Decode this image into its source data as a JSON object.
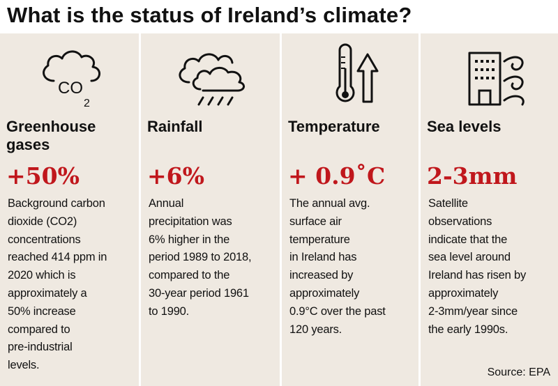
{
  "title": "What is the status of Ireland’s climate?",
  "source": "Source: EPA",
  "panels": [
    {
      "icon": "co2-cloud-icon",
      "heading": "Greenhouse gases",
      "stat": "+50%",
      "lines": [
        "Background carbon",
        "dioxide (CO2)",
        "concentrations",
        "reached 414 ppm in",
        "2020 which is",
        "approximately a",
        "50% increase",
        "compared to",
        "pre-industrial",
        "levels."
      ]
    },
    {
      "icon": "rain-cloud-icon",
      "heading": "Rainfall",
      "stat": "+6%",
      "lines": [
        "Annual",
        "precipitation was",
        "6% higher in the",
        "period 1989 to 2018,",
        "compared to the",
        "30-year period 1961",
        "to 1990."
      ]
    },
    {
      "icon": "thermometer-up-icon",
      "heading": "Temperature",
      "stat": "+ 0.9˚C",
      "lines": [
        "The annual avg.",
        "surface air",
        "temperature",
        "in Ireland has",
        "increased by",
        "approximately",
        "0.9°C over the past",
        "120 years."
      ]
    },
    {
      "icon": "building-waves-icon",
      "heading": "Sea levels",
      "stat": "2-3mm",
      "lines": [
        "Satellite",
        "observations",
        "indicate that the",
        "sea level around",
        "Ireland has risen by",
        "approximately",
        "2-3mm/year since",
        "the early 1990s."
      ]
    }
  ],
  "colors": {
    "accent": "#c0171c",
    "panel_bg": "#efe9e1",
    "text": "#111111"
  },
  "co2_label": {
    "main": "CO",
    "sub": "2"
  }
}
